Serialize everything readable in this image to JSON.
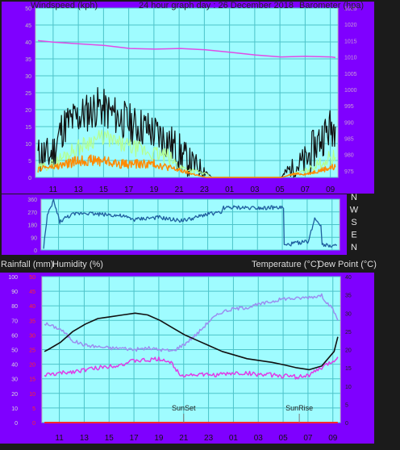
{
  "colors": {
    "background": "#1b1b1b",
    "panel": "#7f00ff",
    "plot": "#9ffcff",
    "grid": "#4cc3c9",
    "black": "#111111",
    "orange": "#ff8a00",
    "light_green": "#b4ff90",
    "barometer": "#e04ce6",
    "wind_dir": "#1f5f9f",
    "temperature": "#111111",
    "dew_point": "#e03ce6",
    "humidity": "#9b8ef0",
    "rainfall": "#ff2a2a"
  },
  "header": {
    "windspeed_label": "Windspeed (kph)",
    "title": "24 hour graph day : 26 December 2018",
    "barometer_label": "Barometer (hpa)"
  },
  "bottom_header": {
    "rainfall_label": "Rainfall (mm)",
    "humidity_label": "Humidity (%)",
    "temperature_label": "Temperature (°C)",
    "dewpoint_label": "Dew Point (°C)"
  },
  "markers": {
    "sunset": "SunSet",
    "sunrise": "SunRise"
  },
  "chart_data": [
    {
      "type": "line",
      "id": "wind_barometer",
      "x_ticks": [
        "11",
        "13",
        "15",
        "17",
        "19",
        "21",
        "23",
        "01",
        "03",
        "05",
        "07",
        "09"
      ],
      "x_range": [
        9.5,
        33.5
      ],
      "left_axis": {
        "label": "Windspeed (kph)",
        "ylim": [
          0,
          50
        ],
        "ticks": [
          0,
          5,
          10,
          15,
          20,
          25,
          30,
          35,
          40,
          45,
          50
        ]
      },
      "right_axis": {
        "label": "Barometer (hpa)",
        "ylim": [
          973,
          1025
        ],
        "ticks": [
          975,
          980,
          985,
          990,
          995,
          1000,
          1005,
          1010,
          1015,
          1020,
          1025
        ]
      },
      "grid": true,
      "series": [
        {
          "name": "gust",
          "axis": "left",
          "color": "black",
          "points": [
            [
              9.7,
              6
            ],
            [
              10,
              7
            ],
            [
              10.5,
              6
            ],
            [
              11,
              8
            ],
            [
              11.5,
              14
            ],
            [
              12,
              16
            ],
            [
              12.5,
              17
            ],
            [
              13,
              18
            ],
            [
              13.5,
              19
            ],
            [
              14,
              20
            ],
            [
              14.5,
              21
            ],
            [
              15,
              20
            ],
            [
              15.5,
              19
            ],
            [
              16,
              18
            ],
            [
              16.5,
              17
            ],
            [
              17,
              16
            ],
            [
              17.5,
              15
            ],
            [
              18,
              15
            ],
            [
              18.5,
              14
            ],
            [
              19,
              13
            ],
            [
              19.5,
              12
            ],
            [
              20,
              11
            ],
            [
              20.5,
              9
            ],
            [
              21,
              7
            ],
            [
              21.5,
              5
            ],
            [
              22,
              4
            ],
            [
              22.5,
              3
            ],
            [
              23,
              2
            ],
            [
              23.2,
              1
            ],
            [
              23.5,
              0
            ],
            [
              24,
              0
            ],
            [
              25,
              0
            ],
            [
              26,
              0
            ],
            [
              27,
              0
            ],
            [
              28,
              0
            ],
            [
              29,
              0
            ],
            [
              29.5,
              2
            ],
            [
              30,
              3
            ],
            [
              30.5,
              4
            ],
            [
              31,
              5
            ],
            [
              31.5,
              8
            ],
            [
              32,
              11
            ],
            [
              32.5,
              13
            ],
            [
              33,
              15
            ],
            [
              33.3,
              15
            ]
          ]
        },
        {
          "name": "average",
          "axis": "left",
          "color": "light_green",
          "points": [
            [
              9.7,
              3
            ],
            [
              10,
              3
            ],
            [
              11,
              4
            ],
            [
              12,
              7
            ],
            [
              13,
              9
            ],
            [
              14,
              11
            ],
            [
              15,
              12
            ],
            [
              16,
              10
            ],
            [
              17,
              9
            ],
            [
              18,
              8
            ],
            [
              19,
              7
            ],
            [
              20,
              6
            ],
            [
              21,
              3
            ],
            [
              22,
              2
            ],
            [
              23,
              1
            ],
            [
              23.5,
              0
            ],
            [
              29,
              0
            ],
            [
              30,
              1
            ],
            [
              31,
              2
            ],
            [
              32,
              4
            ],
            [
              33,
              6
            ],
            [
              33.3,
              6
            ]
          ]
        },
        {
          "name": "lull",
          "axis": "left",
          "color": "orange",
          "points": [
            [
              9.7,
              2
            ],
            [
              10,
              3
            ],
            [
              11,
              3
            ],
            [
              12,
              4
            ],
            [
              13,
              5
            ],
            [
              14,
              5
            ],
            [
              15,
              5
            ],
            [
              16,
              4
            ],
            [
              17,
              4
            ],
            [
              18,
              4
            ],
            [
              19,
              4
            ],
            [
              20,
              3
            ],
            [
              21,
              2
            ],
            [
              22,
              1
            ],
            [
              23,
              0
            ],
            [
              29,
              0
            ],
            [
              30,
              1
            ],
            [
              31,
              1
            ],
            [
              32,
              2
            ],
            [
              33,
              3
            ],
            [
              33.3,
              3
            ]
          ]
        },
        {
          "name": "barometer",
          "axis": "right",
          "color": "barometer",
          "points": [
            [
              9.7,
              1015
            ],
            [
              11,
              1014.5
            ],
            [
              13,
              1014
            ],
            [
              15,
              1013.5
            ],
            [
              17,
              1012.6
            ],
            [
              19,
              1012.4
            ],
            [
              21,
              1012.6
            ],
            [
              23,
              1012.2
            ],
            [
              25,
              1011.4
            ],
            [
              27,
              1010.6
            ],
            [
              29,
              1010.0
            ],
            [
              31,
              1010.2
            ],
            [
              33,
              1010.0
            ],
            [
              33.3,
              1009.8
            ]
          ]
        }
      ]
    },
    {
      "type": "line",
      "id": "wind_direction",
      "ylim": [
        0,
        360
      ],
      "y_ticks": [
        0,
        90,
        180,
        270,
        360
      ],
      "compass_labels": [
        "N",
        "W",
        "S",
        "E",
        "N"
      ],
      "grid": true,
      "series": [
        {
          "name": "wind direction",
          "color": "wind_dir",
          "points": [
            [
              9.7,
              20
            ],
            [
              10,
              240
            ],
            [
              10.5,
              350
            ],
            [
              11,
              200
            ],
            [
              11.5,
              230
            ],
            [
              12,
              250
            ],
            [
              13,
              265
            ],
            [
              14,
              255
            ],
            [
              15,
              250
            ],
            [
              16,
              240
            ],
            [
              17,
              215
            ],
            [
              18,
              225
            ],
            [
              19,
              230
            ],
            [
              20,
              215
            ],
            [
              21,
              210
            ],
            [
              22,
              230
            ],
            [
              23,
              260
            ],
            [
              24,
              260
            ],
            [
              24.1,
              300
            ],
            [
              25,
              300
            ],
            [
              26,
              300
            ],
            [
              27,
              300
            ],
            [
              28,
              300
            ],
            [
              29,
              300
            ],
            [
              29.05,
              30
            ],
            [
              30,
              50
            ],
            [
              31,
              60
            ],
            [
              31.5,
              225
            ],
            [
              32,
              180
            ],
            [
              32.1,
              40
            ],
            [
              33,
              30
            ],
            [
              33.3,
              35
            ]
          ]
        }
      ]
    },
    {
      "type": "line",
      "id": "temp_humidity",
      "x_ticks": [
        "11",
        "13",
        "15",
        "17",
        "19",
        "21",
        "23",
        "01",
        "03",
        "05",
        "07",
        "09"
      ],
      "x_range": [
        9.5,
        33.5
      ],
      "left_axis": {
        "label": "Humidity (%)",
        "ylim": [
          0,
          100
        ],
        "ticks": [
          0,
          10,
          20,
          30,
          40,
          50,
          60,
          70,
          80,
          90,
          100
        ]
      },
      "left_axis_rain": {
        "label": "Rainfall (mm)",
        "ylim": [
          0,
          50
        ],
        "ticks": [
          0,
          5,
          10,
          15,
          20,
          25,
          30,
          35,
          40,
          45,
          50
        ]
      },
      "right_axis": {
        "label": "Temperature (°C)",
        "ylim": [
          0,
          40
        ],
        "ticks": [
          0,
          5,
          10,
          15,
          20,
          25,
          30,
          35,
          40
        ]
      },
      "grid": true,
      "series": [
        {
          "name": "humidity",
          "axis": "left",
          "color": "humidity",
          "points": [
            [
              9.7,
              68
            ],
            [
              11,
              64
            ],
            [
              12,
              56
            ],
            [
              13,
              53
            ],
            [
              14,
              52
            ],
            [
              15,
              51
            ],
            [
              16,
              51
            ],
            [
              17,
              50
            ],
            [
              18,
              51
            ],
            [
              19,
              50
            ],
            [
              20,
              49
            ],
            [
              21,
              54
            ],
            [
              22,
              61
            ],
            [
              23,
              70
            ],
            [
              24,
              76
            ],
            [
              25,
              78
            ],
            [
              26,
              79
            ],
            [
              27,
              81
            ],
            [
              28,
              83
            ],
            [
              29,
              85
            ],
            [
              30,
              85
            ],
            [
              31,
              86
            ],
            [
              32,
              87
            ],
            [
              33,
              76
            ],
            [
              33.3,
              70
            ]
          ]
        },
        {
          "name": "temperature",
          "axis": "right",
          "color": "temperature",
          "points": [
            [
              9.7,
              19.5
            ],
            [
              10,
              20
            ],
            [
              11,
              22
            ],
            [
              12,
              25
            ],
            [
              13,
              27
            ],
            [
              14,
              28.5
            ],
            [
              15,
              29
            ],
            [
              16,
              29.5
            ],
            [
              17,
              30
            ],
            [
              18,
              29.5
            ],
            [
              19,
              28
            ],
            [
              20,
              26
            ],
            [
              21,
              24
            ],
            [
              22,
              22.5
            ],
            [
              23,
              21
            ],
            [
              24,
              19.5
            ],
            [
              25,
              18.5
            ],
            [
              26,
              17.5
            ],
            [
              27,
              17
            ],
            [
              28,
              16.5
            ],
            [
              29,
              15.8
            ],
            [
              30,
              15
            ],
            [
              31,
              14.5
            ],
            [
              32,
              15.5
            ],
            [
              33,
              19.5
            ],
            [
              33.3,
              23.5
            ]
          ]
        },
        {
          "name": "dew point",
          "axis": "right",
          "color": "dew_point",
          "points": [
            [
              9.7,
              13
            ],
            [
              11,
              13.5
            ],
            [
              12,
              14
            ],
            [
              13,
              14.5
            ],
            [
              14,
              15
            ],
            [
              15,
              15.5
            ],
            [
              16,
              16
            ],
            [
              17,
              17
            ],
            [
              18,
              17
            ],
            [
              19,
              17.5
            ],
            [
              19.5,
              17
            ],
            [
              20,
              16
            ],
            [
              20.5,
              13.5
            ],
            [
              21,
              13
            ],
            [
              22,
              13.2
            ],
            [
              23,
              13
            ],
            [
              24,
              13.2
            ],
            [
              25,
              13.5
            ],
            [
              26,
              13.5
            ],
            [
              27,
              13.2
            ],
            [
              28,
              13
            ],
            [
              29,
              12.8
            ],
            [
              30,
              12.5
            ],
            [
              31,
              13
            ],
            [
              32,
              15
            ],
            [
              33,
              17
            ],
            [
              33.3,
              18
            ]
          ]
        },
        {
          "name": "rainfall",
          "axis": "left_rain",
          "color": "rainfall",
          "points": [
            [
              9.7,
              0
            ],
            [
              33.3,
              0
            ]
          ]
        }
      ]
    }
  ]
}
